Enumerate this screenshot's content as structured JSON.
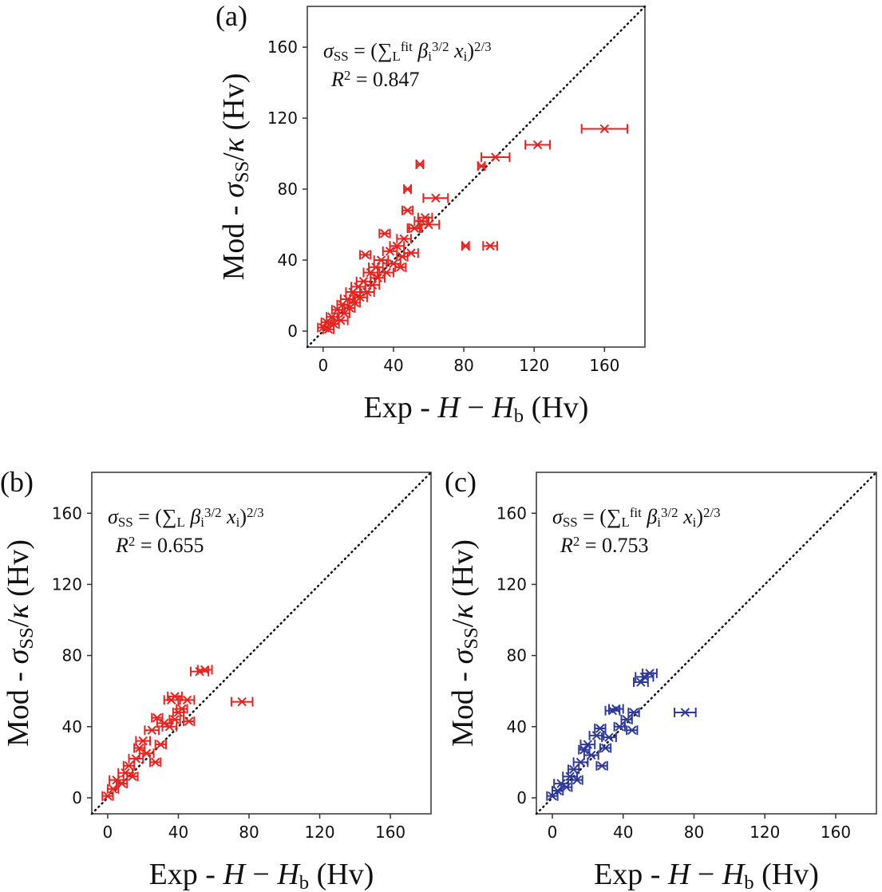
{
  "chart_data": [
    {
      "type": "scatter",
      "label": "(a)",
      "color": "#e8231f",
      "formula": [
        [
          "σ",
          "italic"
        ],
        [
          "SS",
          "sub"
        ],
        [
          " = (∑",
          "base"
        ],
        [
          "L",
          "sub"
        ],
        [
          "fit",
          "sup"
        ],
        [
          " β",
          "italic"
        ],
        [
          "i",
          "sub"
        ],
        [
          "3/2",
          "sup"
        ],
        [
          " x",
          "italic"
        ],
        [
          "i",
          "sub"
        ],
        [
          ")",
          "base"
        ],
        [
          "2/3",
          "sup"
        ]
      ],
      "r2": [
        [
          "R",
          "italic"
        ],
        [
          "2",
          "sup"
        ],
        [
          " = 0.847",
          "base"
        ]
      ],
      "xlabel": [
        [
          "Exp - ",
          "base"
        ],
        [
          "H",
          "italic"
        ],
        [
          " − ",
          "base"
        ],
        [
          "H",
          "italic"
        ],
        [
          "b",
          "sub"
        ],
        [
          " (Hv)",
          "base"
        ]
      ],
      "ylabel": [
        [
          "Mod - ",
          "base"
        ],
        [
          "σ",
          "italic"
        ],
        [
          "SS",
          "sub"
        ],
        [
          "/",
          "base"
        ],
        [
          "κ",
          "italic"
        ],
        [
          " (Hv)",
          "base"
        ]
      ],
      "x": [
        0,
        2,
        3,
        5,
        6,
        8,
        10,
        11,
        12,
        14,
        15,
        17,
        18,
        20,
        21,
        23,
        24,
        25,
        27,
        28,
        30,
        31,
        33,
        35,
        36,
        38,
        40,
        42,
        44,
        46,
        48,
        48,
        50,
        52,
        55,
        56,
        58,
        60,
        64,
        81,
        95,
        90,
        98,
        122,
        160,
        52,
        45
      ],
      "y": [
        2,
        5,
        1,
        8,
        4,
        12,
        6,
        15,
        10,
        18,
        13,
        22,
        16,
        25,
        19,
        28,
        43,
        22,
        33,
        26,
        36,
        30,
        40,
        55,
        33,
        45,
        38,
        48,
        36,
        52,
        80,
        68,
        44,
        58,
        94,
        62,
        64,
        60,
        75,
        48,
        48,
        93,
        98,
        105,
        114,
        58,
        42
      ],
      "xerr": [
        3,
        3,
        3,
        3,
        3,
        3,
        4,
        3,
        3,
        4,
        3,
        4,
        3,
        4,
        4,
        4,
        3,
        4,
        4,
        4,
        4,
        4,
        4,
        3,
        4,
        4,
        4,
        4,
        3,
        4,
        2,
        3,
        4,
        4,
        2,
        4,
        4,
        6,
        7,
        2,
        4,
        2,
        8,
        7,
        13,
        3,
        3
      ],
      "xlim": [
        -9,
        183
      ],
      "ylim": [
        -9,
        183
      ],
      "xticks": [
        0,
        40,
        80,
        120,
        160
      ],
      "yticks": [
        0,
        40,
        80,
        120,
        160
      ]
    },
    {
      "type": "scatter",
      "label": "(b)",
      "color": "#e8231f",
      "formula": [
        [
          "σ",
          "italic"
        ],
        [
          "SS",
          "sub"
        ],
        [
          " = (∑",
          "base"
        ],
        [
          "L",
          "sub"
        ],
        [
          " β",
          "italic"
        ],
        [
          "i",
          "sub"
        ],
        [
          "3/2",
          "sup"
        ],
        [
          " x",
          "italic"
        ],
        [
          "i",
          "sub"
        ],
        [
          ")",
          "base"
        ],
        [
          "2/3",
          "sup"
        ]
      ],
      "r2": [
        [
          "R",
          "italic"
        ],
        [
          "2",
          "sup"
        ],
        [
          " = 0.655",
          "base"
        ]
      ],
      "xlabel": [
        [
          "Exp - ",
          "base"
        ],
        [
          "H",
          "italic"
        ],
        [
          " − ",
          "base"
        ],
        [
          "H",
          "italic"
        ],
        [
          "b",
          "sub"
        ],
        [
          " (Hv)",
          "base"
        ]
      ],
      "ylabel": [
        [
          "Mod - ",
          "base"
        ],
        [
          "σ",
          "italic"
        ],
        [
          "SS",
          "sub"
        ],
        [
          "/",
          "base"
        ],
        [
          "κ",
          "italic"
        ],
        [
          " (Hv)",
          "base"
        ]
      ],
      "x": [
        0,
        3,
        5,
        8,
        10,
        12,
        14,
        16,
        18,
        20,
        22,
        25,
        27,
        28,
        30,
        32,
        35,
        36,
        38,
        40,
        42,
        45,
        46,
        52,
        55,
        76,
        38
      ],
      "y": [
        1,
        5,
        10,
        8,
        14,
        18,
        12,
        22,
        28,
        32,
        25,
        38,
        20,
        45,
        30,
        42,
        40,
        55,
        57,
        48,
        50,
        55,
        43,
        71,
        72,
        54,
        44
      ],
      "xerr": [
        3,
        3,
        4,
        3,
        4,
        3,
        3,
        4,
        3,
        4,
        4,
        4,
        3,
        3,
        3,
        4,
        4,
        4,
        4,
        3,
        3,
        4,
        3,
        5,
        4,
        6,
        3
      ],
      "xlim": [
        -9,
        183
      ],
      "ylim": [
        -9,
        183
      ],
      "xticks": [
        0,
        40,
        80,
        120,
        160
      ],
      "yticks": [
        0,
        40,
        80,
        120,
        160
      ]
    },
    {
      "type": "scatter",
      "label": "(c)",
      "color": "#2e3a9a",
      "formula": [
        [
          "σ",
          "italic"
        ],
        [
          "SS",
          "sub"
        ],
        [
          " = (∑",
          "base"
        ],
        [
          "L",
          "sub"
        ],
        [
          "fit",
          "sup"
        ],
        [
          " β",
          "italic"
        ],
        [
          "i",
          "sub"
        ],
        [
          "3/2",
          "sup"
        ],
        [
          " x",
          "italic"
        ],
        [
          "i",
          "sub"
        ],
        [
          ")",
          "base"
        ],
        [
          "2/3",
          "sup"
        ]
      ],
      "r2": [
        [
          "R",
          "italic"
        ],
        [
          "2",
          "sup"
        ],
        [
          " = 0.753",
          "base"
        ]
      ],
      "xlabel": [
        [
          "Exp - ",
          "base"
        ],
        [
          "H",
          "italic"
        ],
        [
          " − ",
          "base"
        ],
        [
          "H",
          "italic"
        ],
        [
          "b",
          "sub"
        ],
        [
          " (Hv)",
          "base"
        ]
      ],
      "ylabel": [
        [
          "Mod - ",
          "base"
        ],
        [
          "σ",
          "italic"
        ],
        [
          "SS",
          "sub"
        ],
        [
          "/",
          "base"
        ],
        [
          "κ",
          "italic"
        ],
        [
          " (Hv)",
          "base"
        ]
      ],
      "x": [
        0,
        3,
        5,
        8,
        10,
        12,
        14,
        16,
        18,
        20,
        22,
        25,
        27,
        28,
        30,
        32,
        34,
        36,
        38,
        42,
        45,
        46,
        50,
        52,
        55,
        75
      ],
      "y": [
        1,
        4,
        8,
        6,
        12,
        16,
        10,
        20,
        27,
        30,
        24,
        35,
        39,
        18,
        28,
        34,
        49,
        50,
        40,
        44,
        38,
        48,
        65,
        68,
        70,
        48
      ],
      "xerr": [
        3,
        3,
        4,
        3,
        4,
        3,
        3,
        4,
        3,
        4,
        4,
        4,
        3,
        3,
        3,
        4,
        4,
        4,
        3,
        3,
        3,
        3,
        4,
        5,
        4,
        6
      ],
      "xlim": [
        -9,
        183
      ],
      "ylim": [
        -9,
        183
      ],
      "xticks": [
        0,
        40,
        80,
        120,
        160
      ],
      "yticks": [
        0,
        40,
        80,
        120,
        160
      ]
    }
  ]
}
